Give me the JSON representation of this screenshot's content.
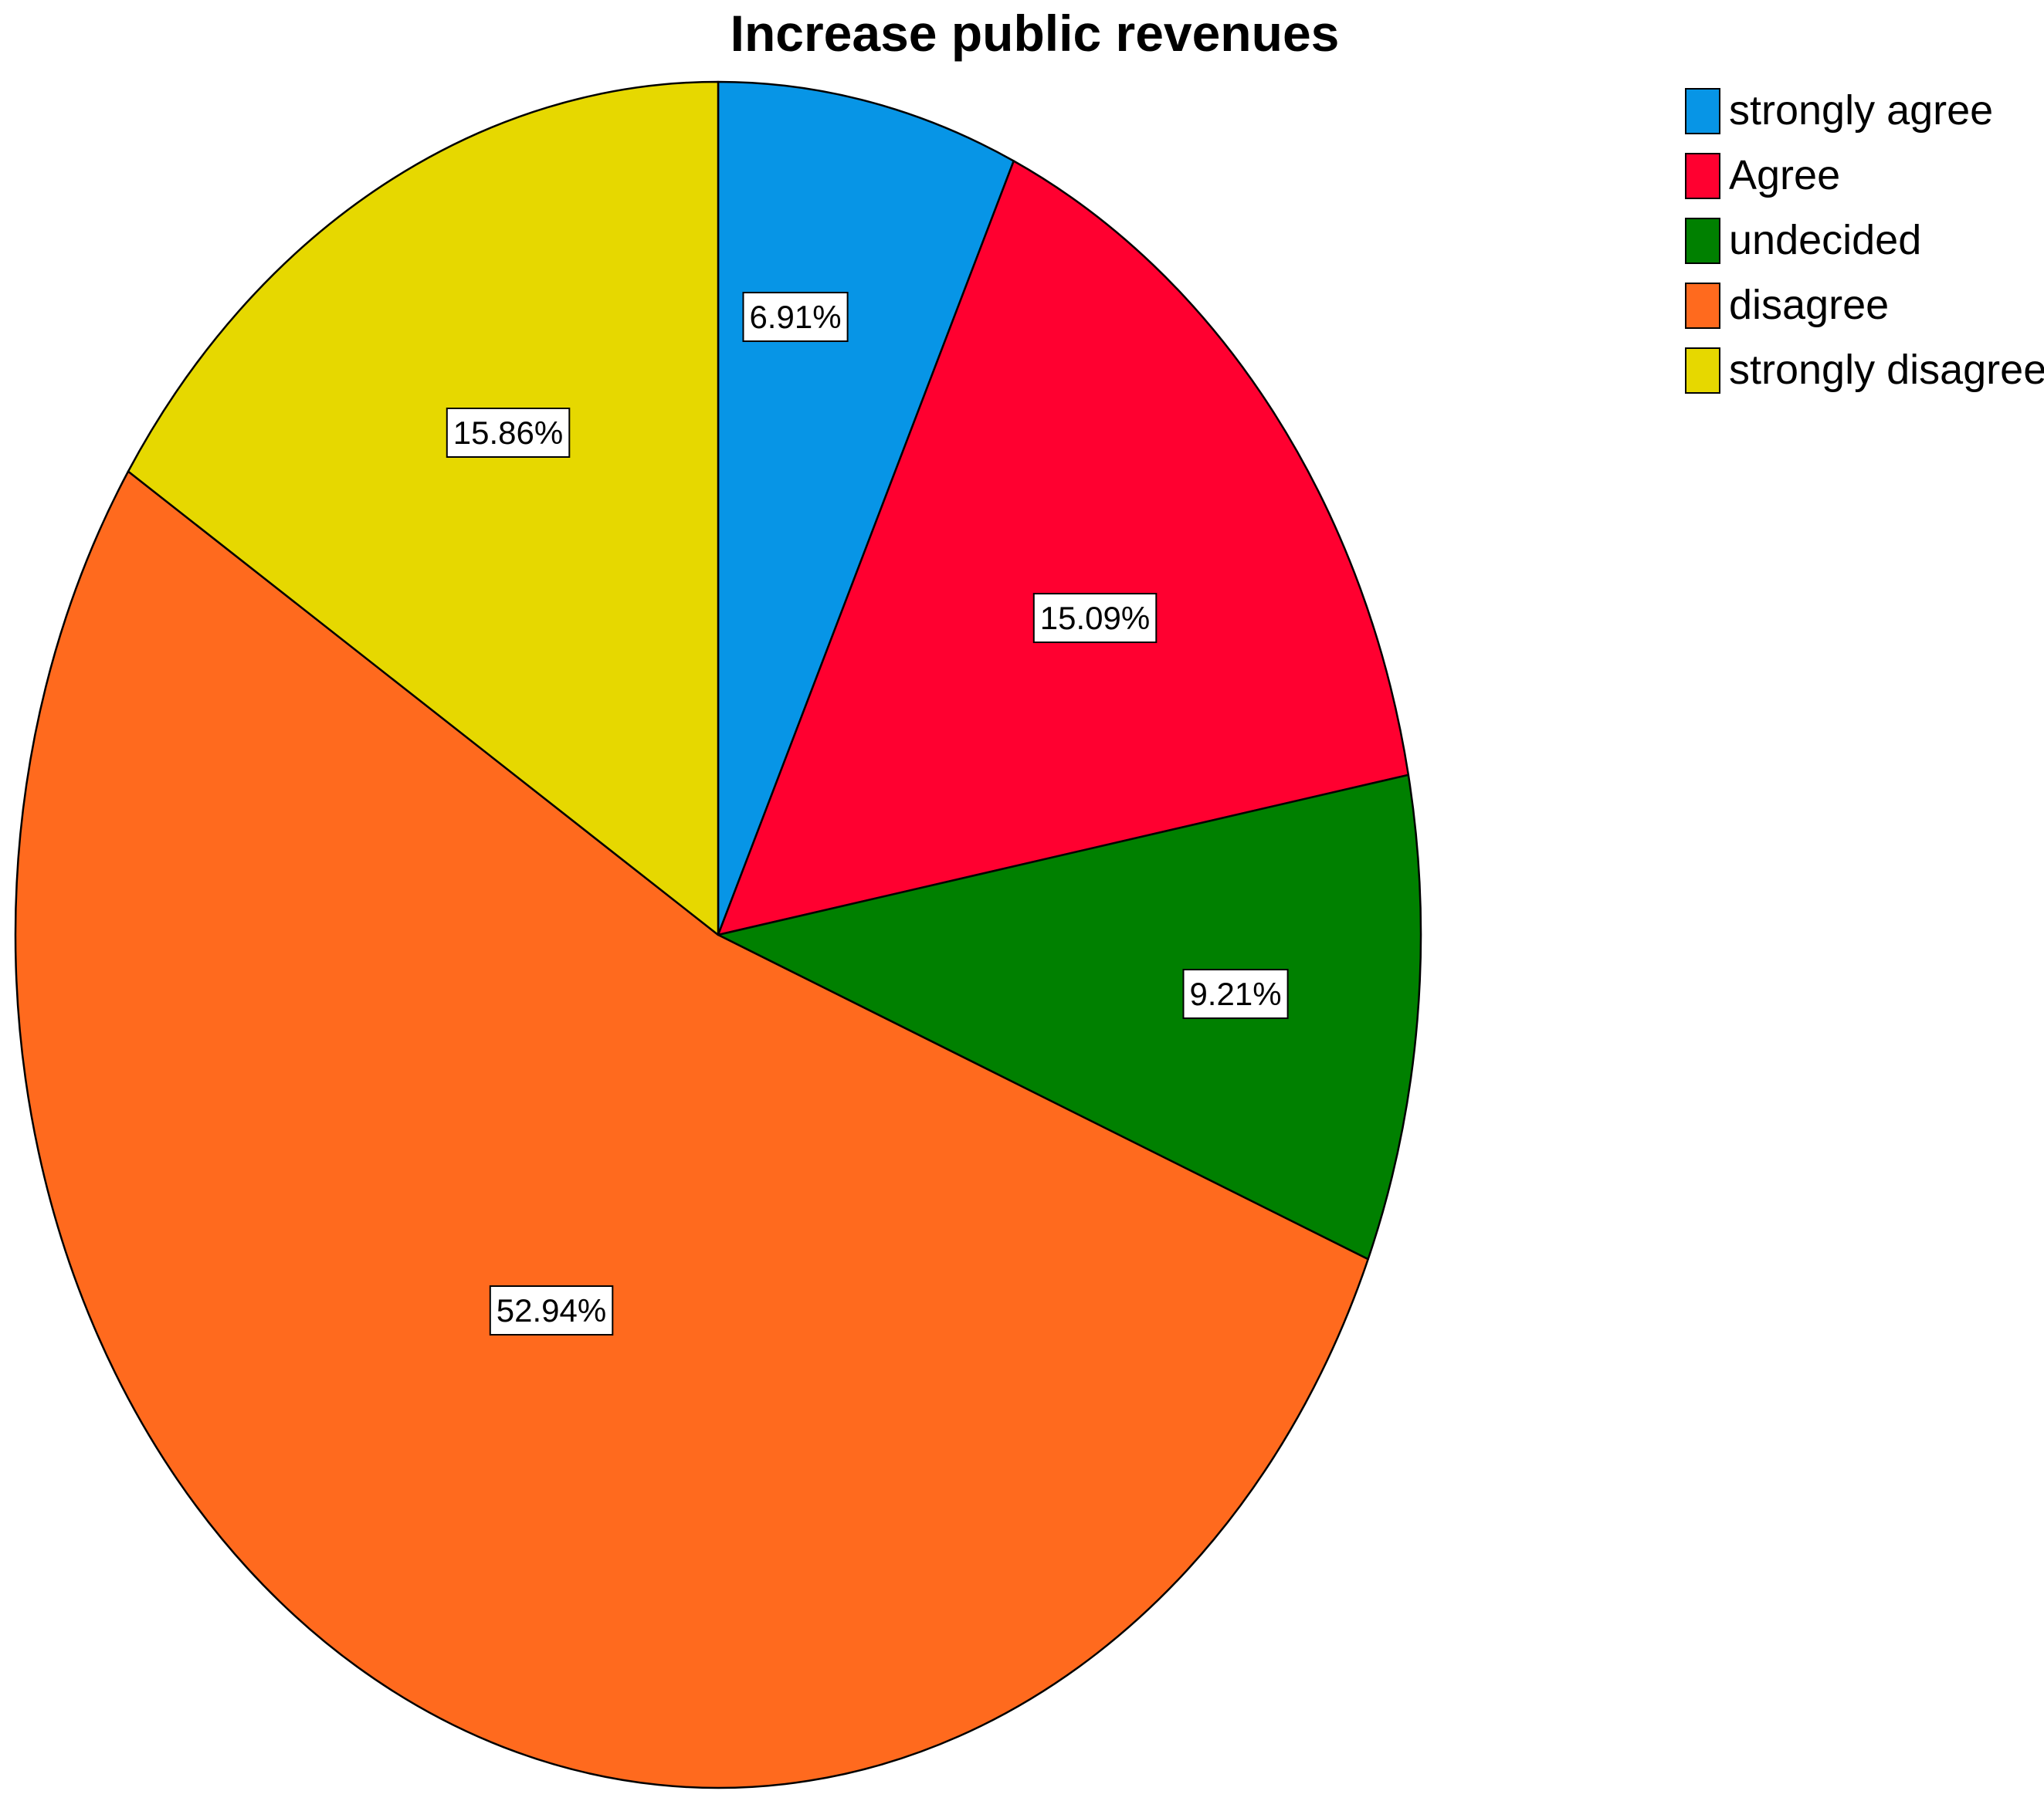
{
  "chart_data": {
    "type": "pie",
    "title": "Increase public revenues",
    "slices": [
      {
        "label": "strongly agree",
        "value": 6.91,
        "display": "6.91%",
        "color": "#0795e6"
      },
      {
        "label": "Agree",
        "value": 15.09,
        "display": "15.09%",
        "color": "#ff0030"
      },
      {
        "label": "undecided",
        "value": 9.21,
        "display": "9.21%",
        "color": "#008000"
      },
      {
        "label": "disagree",
        "value": 52.94,
        "display": "52.94%",
        "color": "#ff6a1e"
      },
      {
        "label": "strongly disagree",
        "value": 15.86,
        "display": "15.86%",
        "color": "#e6d800"
      }
    ],
    "start": "12 o'clock",
    "direction": "clockwise",
    "legend_position": "top-right",
    "outline_color": "#000000"
  }
}
